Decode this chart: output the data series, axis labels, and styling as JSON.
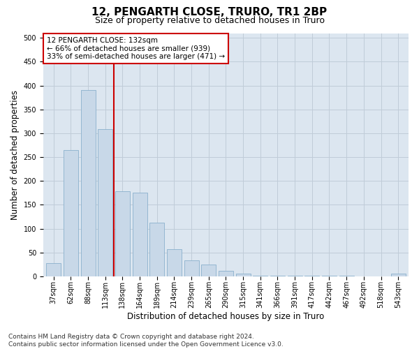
{
  "title": "12, PENGARTH CLOSE, TRURO, TR1 2BP",
  "subtitle": "Size of property relative to detached houses in Truro",
  "xlabel": "Distribution of detached houses by size in Truro",
  "ylabel": "Number of detached properties",
  "bar_color": "#c8d8e8",
  "bar_edge_color": "#8ab0cc",
  "categories": [
    "37sqm",
    "62sqm",
    "88sqm",
    "113sqm",
    "138sqm",
    "164sqm",
    "189sqm",
    "214sqm",
    "239sqm",
    "265sqm",
    "290sqm",
    "315sqm",
    "341sqm",
    "366sqm",
    "391sqm",
    "417sqm",
    "442sqm",
    "467sqm",
    "492sqm",
    "518sqm",
    "543sqm"
  ],
  "values": [
    28,
    265,
    390,
    308,
    178,
    175,
    113,
    57,
    33,
    24,
    12,
    6,
    1,
    1,
    1,
    1,
    1,
    1,
    0,
    0,
    5
  ],
  "vline_x": 3.5,
  "vline_color": "#cc0000",
  "annotation_text": "12 PENGARTH CLOSE: 132sqm\n← 66% of detached houses are smaller (939)\n33% of semi-detached houses are larger (471) →",
  "annotation_box_color": "#ffffff",
  "annotation_box_edgecolor": "#cc0000",
  "ylim": [
    0,
    510
  ],
  "yticks": [
    0,
    50,
    100,
    150,
    200,
    250,
    300,
    350,
    400,
    450,
    500
  ],
  "grid_color": "#c0ccd8",
  "background_color": "#dce6f0",
  "footer": "Contains HM Land Registry data © Crown copyright and database right 2024.\nContains public sector information licensed under the Open Government Licence v3.0.",
  "title_fontsize": 11,
  "subtitle_fontsize": 9,
  "axis_label_fontsize": 8.5,
  "tick_fontsize": 7,
  "annotation_fontsize": 7.5,
  "footer_fontsize": 6.5
}
